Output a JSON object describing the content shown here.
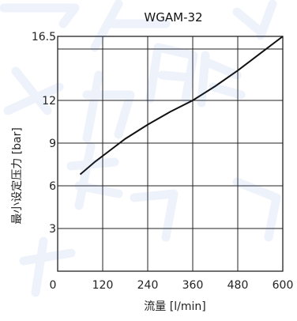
{
  "chart_data": {
    "type": "line",
    "title": "WGAM-32",
    "xlabel": "流量 [l/min]",
    "ylabel": "最小设定压力 [bar]",
    "x_ticks": [
      "0",
      "120",
      "240",
      "360",
      "480",
      "600"
    ],
    "y_ticks": [
      "3",
      "6",
      "9",
      "12",
      "16.5"
    ],
    "xlim": [
      0,
      600
    ],
    "ylim": [
      0,
      16.5
    ],
    "grid": true,
    "series": [
      {
        "values_xy": [
          [
            60,
            6.8
          ],
          [
            100,
            7.7
          ],
          [
            140,
            8.5
          ],
          [
            180,
            9.3
          ],
          [
            240,
            10.3
          ],
          [
            300,
            11.2
          ],
          [
            360,
            12.0
          ],
          [
            420,
            13.0
          ],
          [
            480,
            14.1
          ],
          [
            540,
            15.3
          ],
          [
            600,
            16.5
          ]
        ]
      }
    ]
  },
  "watermark": {
    "color": "#3f6fd8"
  }
}
